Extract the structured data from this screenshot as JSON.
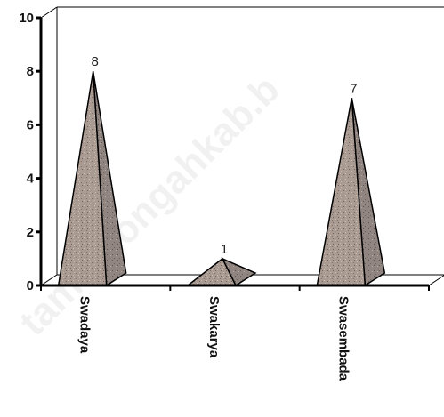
{
  "chart_data": {
    "type": "bar",
    "style": "3d-cone",
    "categories": [
      "Swadaya",
      "Swakarya",
      "Swasembada"
    ],
    "values": [
      8,
      1,
      7
    ],
    "data_labels": [
      "8",
      "1",
      "7"
    ],
    "ylim": [
      0,
      10
    ],
    "yticks": [
      0,
      2,
      4,
      6,
      8,
      10
    ],
    "ytick_labels": [
      "0",
      "2",
      "4",
      "6",
      "8",
      "10"
    ],
    "title": "",
    "xlabel": "",
    "ylabel": "",
    "grid": false,
    "legend": "none",
    "colors": {
      "cone_front": "#a99a92",
      "cone_side": "#8f847e",
      "stroke": "#000000"
    },
    "watermark": "tambolongahkab.b"
  }
}
